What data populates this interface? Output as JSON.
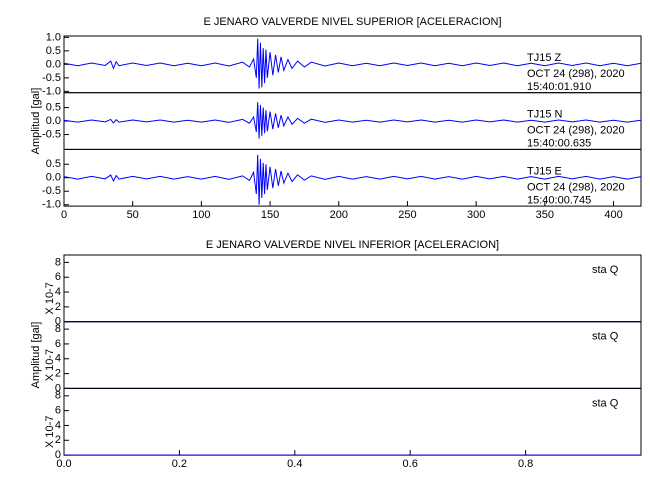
{
  "chart_data": [
    {
      "type": "line",
      "title": "E JENARO VALVERDE NIVEL SUPERIOR [ACELERACION]",
      "y_label": "Amplitud [gal]",
      "xlim": [
        0,
        420
      ],
      "xticks": [
        0,
        50,
        100,
        150,
        200,
        250,
        300,
        350,
        400
      ],
      "x": [
        0,
        10,
        20,
        30,
        34,
        36,
        38,
        40,
        50,
        60,
        70,
        80,
        90,
        100,
        110,
        120,
        130,
        135,
        138,
        140,
        141,
        142,
        143,
        144,
        145,
        146,
        147,
        148,
        150,
        152,
        154,
        156,
        158,
        160,
        163,
        166,
        170,
        175,
        180,
        190,
        200,
        210,
        220,
        230,
        240,
        250,
        260,
        270,
        280,
        290,
        300,
        310,
        320,
        330,
        340,
        350,
        360,
        370,
        380,
        390,
        400,
        410,
        420
      ],
      "panels": [
        {
          "ylim": [
            -1.05,
            1.05
          ],
          "yticks": [
            {
              "value": -1,
              "label": "-1.0"
            },
            -0.5,
            {
              "value": 0,
              "label": "0.0"
            },
            0.5,
            {
              "value": 1,
              "label": "1.0"
            }
          ],
          "annotations": [
            "TJ15   Z",
            "OCT 24 (298), 2020",
            "15:40:01.910"
          ],
          "series": [
            {
              "color": "#0000ff",
              "values": [
                0.04,
                -0.05,
                0.05,
                -0.04,
                0.12,
                -0.15,
                0.1,
                -0.05,
                0.05,
                -0.04,
                0.05,
                -0.05,
                0.04,
                -0.05,
                0.05,
                -0.06,
                0.08,
                -0.1,
                0.2,
                -0.5,
                0.95,
                -0.9,
                0.8,
                -0.85,
                0.6,
                -0.7,
                0.55,
                -0.5,
                0.45,
                -0.4,
                0.35,
                -0.3,
                0.28,
                -0.22,
                0.18,
                -0.15,
                0.12,
                -0.1,
                0.08,
                -0.06,
                0.05,
                -0.05,
                0.04,
                -0.05,
                0.05,
                -0.04,
                0.05,
                -0.05,
                0.04,
                -0.05,
                0.05,
                -0.04,
                0.05,
                -0.05,
                0.04,
                -0.05,
                0.05,
                -0.04,
                0.05,
                -0.05,
                0.04,
                -0.05,
                0.04
              ]
            }
          ]
        },
        {
          "ylim": [
            -1.05,
            1.05
          ],
          "yticks": [
            -0.5,
            {
              "value": 0,
              "label": "0.0"
            },
            0.5
          ],
          "annotations": [
            "TJ15   N",
            "OCT 24 (298), 2020",
            "15:40:00.635"
          ],
          "series": [
            {
              "color": "#0000ff",
              "values": [
                0.03,
                -0.04,
                0.04,
                -0.03,
                0.06,
                -0.07,
                0.05,
                -0.04,
                0.04,
                -0.03,
                0.04,
                -0.04,
                0.03,
                -0.04,
                0.04,
                -0.05,
                0.06,
                -0.08,
                0.15,
                -0.4,
                0.7,
                -0.65,
                0.6,
                -0.55,
                0.5,
                -0.45,
                0.4,
                -0.38,
                0.35,
                -0.3,
                0.28,
                -0.25,
                0.22,
                -0.18,
                0.15,
                -0.12,
                0.1,
                -0.08,
                0.07,
                -0.05,
                0.04,
                -0.04,
                0.03,
                -0.04,
                0.04,
                -0.03,
                0.04,
                -0.04,
                0.03,
                -0.04,
                0.04,
                -0.03,
                0.04,
                -0.04,
                0.03,
                -0.04,
                0.04,
                -0.03,
                0.04,
                -0.04,
                0.03,
                -0.04,
                0.03
              ]
            }
          ]
        },
        {
          "ylim": [
            -1.05,
            1.05
          ],
          "yticks": [
            {
              "value": -1,
              "label": "-1.0"
            },
            -0.5,
            {
              "value": 0,
              "label": "0.0"
            },
            0.5
          ],
          "annotations": [
            "TJ15   E",
            "OCT 24 (298), 2020",
            "15:40:00.745"
          ],
          "series": [
            {
              "color": "#0000ff",
              "values": [
                0.04,
                -0.05,
                0.05,
                -0.04,
                0.1,
                -0.12,
                0.08,
                -0.05,
                0.05,
                -0.04,
                0.05,
                -0.05,
                0.04,
                -0.05,
                0.05,
                -0.06,
                0.07,
                -0.1,
                0.2,
                -0.6,
                0.85,
                -1.0,
                0.7,
                -0.75,
                0.55,
                -0.6,
                0.5,
                -0.45,
                0.4,
                -0.38,
                0.32,
                -0.3,
                0.25,
                -0.2,
                0.17,
                -0.14,
                0.11,
                -0.09,
                0.07,
                -0.06,
                0.05,
                -0.05,
                0.04,
                -0.05,
                0.05,
                -0.04,
                0.05,
                -0.05,
                0.04,
                -0.05,
                0.05,
                -0.04,
                0.05,
                -0.05,
                0.04,
                -0.05,
                0.05,
                -0.04,
                0.05,
                -0.05,
                0.04,
                -0.05,
                0.04
              ]
            }
          ]
        }
      ]
    },
    {
      "type": "line",
      "title": "E JENARO VALVERDE NIVEL INFERIOR [ACELERACION]",
      "y_label": "Amplitud [gal]",
      "xlim": [
        0,
        1
      ],
      "xticks": [
        {
          "value": 0,
          "label": "0.0"
        },
        0.2,
        0.4,
        0.6,
        0.8
      ],
      "x": [
        0,
        1
      ],
      "panels": [
        {
          "ylim": [
            0,
            9
          ],
          "yticks": [
            0,
            2,
            4,
            6,
            8
          ],
          "y_unit": "X 10-7",
          "annotations": [
            "sta   Q"
          ],
          "series": [
            {
              "color": "#0000ff",
              "values": [
                0,
                0
              ]
            }
          ]
        },
        {
          "ylim": [
            0,
            9
          ],
          "yticks": [
            0,
            2,
            4,
            6,
            8
          ],
          "y_unit": "X 10-7",
          "annotations": [
            "sta   Q"
          ],
          "series": [
            {
              "color": "#0000ff",
              "values": [
                0,
                0
              ]
            }
          ]
        },
        {
          "ylim": [
            0,
            9
          ],
          "yticks": [
            0,
            2,
            4,
            6,
            8
          ],
          "y_unit": "X 10-7",
          "annotations": [
            "sta   Q"
          ],
          "series": [
            {
              "color": "#0000ff",
              "values": [
                0,
                0
              ]
            }
          ]
        }
      ]
    }
  ]
}
